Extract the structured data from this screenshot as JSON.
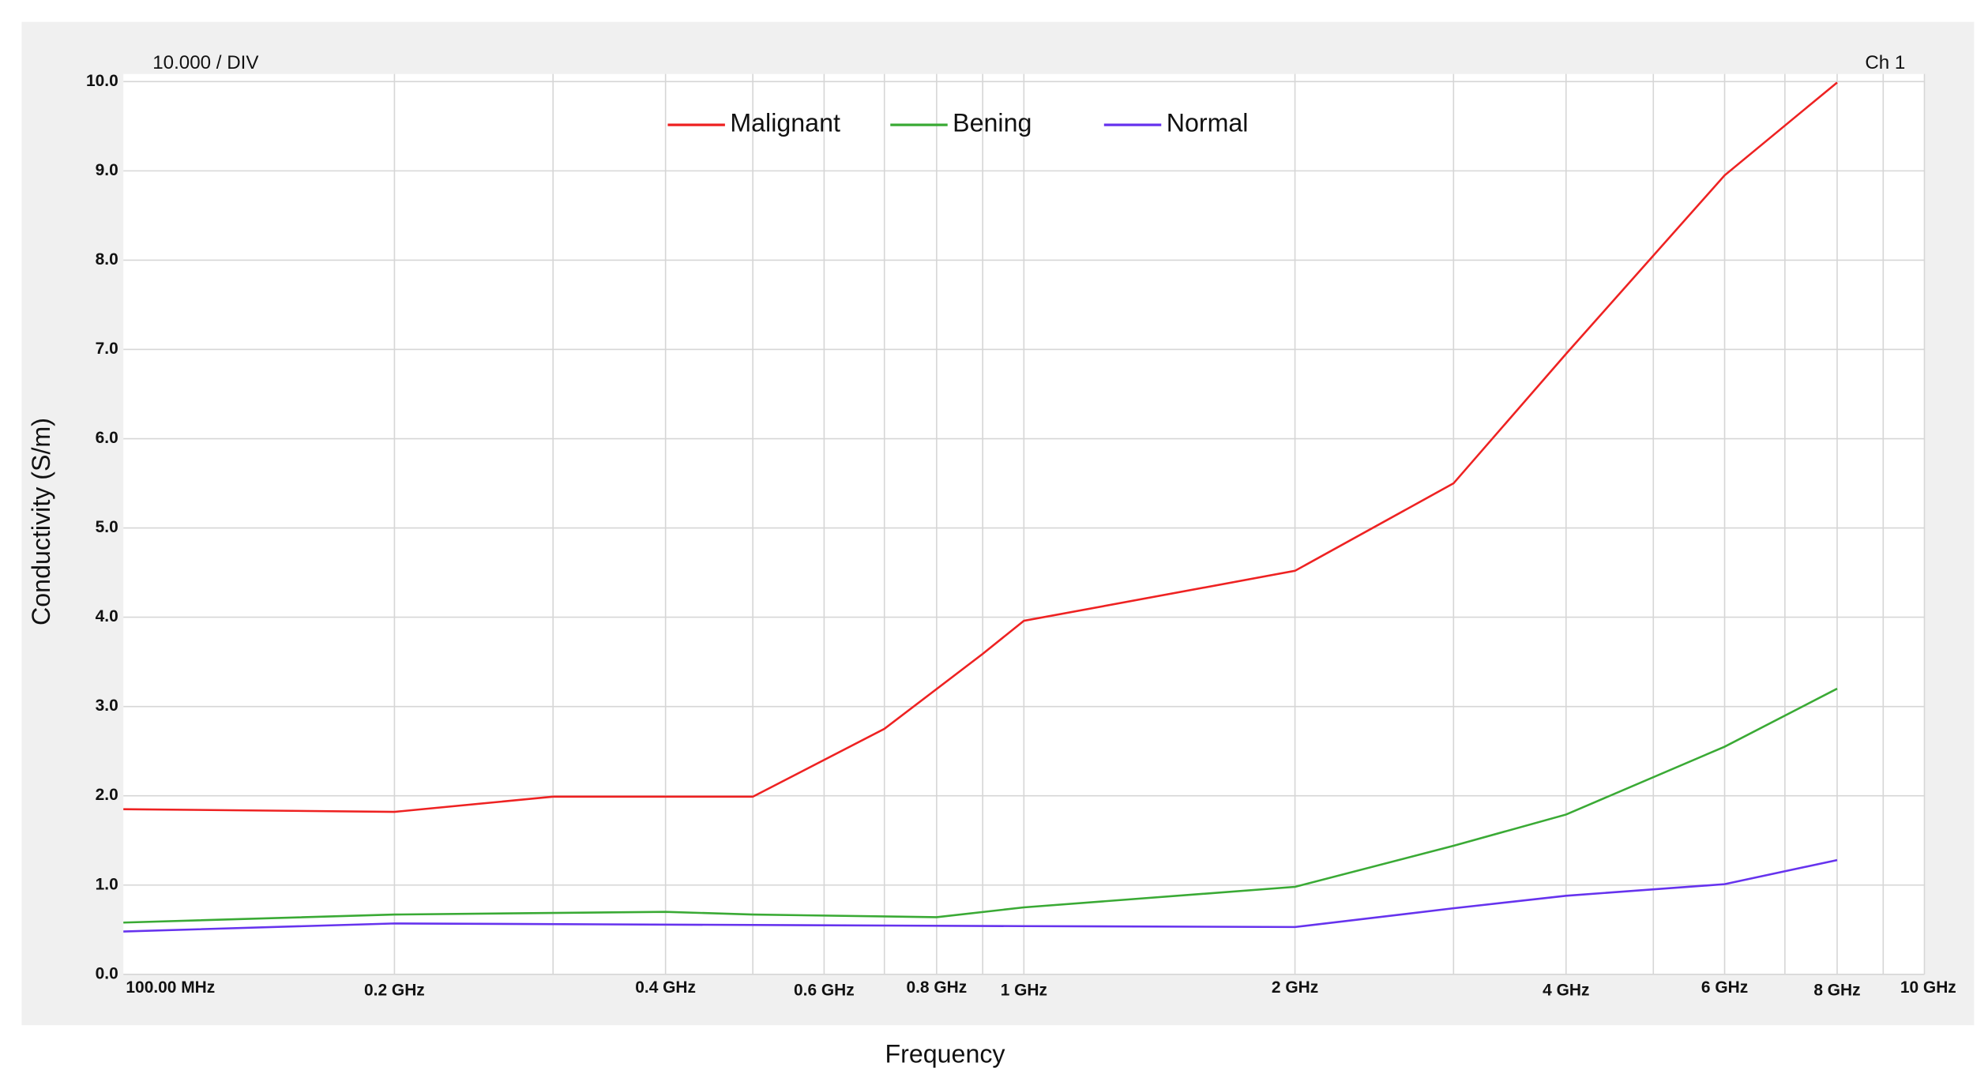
{
  "chart_data": {
    "type": "line",
    "title": "10.000 / DIV",
    "channel_label": "Ch 1",
    "x_label": "Frequency",
    "y_label": "Conductivity  (S/m)",
    "log_x": true,
    "grid": true,
    "legend_position": "top",
    "xlim": [
      0.1,
      10
    ],
    "ylim": [
      0,
      10
    ],
    "xticks": [
      {
        "value": 0.1,
        "label": "100.00 MHz"
      },
      {
        "value": 0.2,
        "label": "0.2 GHz"
      },
      {
        "value": 0.4,
        "label": "0.4 GHz"
      },
      {
        "value": 0.6,
        "label": "0.6 GHz"
      },
      {
        "value": 0.8,
        "label": "0.8 GHz"
      },
      {
        "value": 1,
        "label": "1 GHz"
      },
      {
        "value": 2,
        "label": "2 GHz"
      },
      {
        "value": 4,
        "label": "4 GHz"
      },
      {
        "value": 6,
        "label": "6 GHz"
      },
      {
        "value": 8,
        "label": "8 GHz"
      },
      {
        "value": 10,
        "label": "10 GHz"
      }
    ],
    "x_minor_gridlines": [
      0.3,
      0.5,
      0.7,
      0.9,
      3,
      5,
      7,
      9
    ],
    "yticks": [
      {
        "value": 0,
        "label": "0.0"
      },
      {
        "value": 1,
        "label": "1.0"
      },
      {
        "value": 2,
        "label": "2.0"
      },
      {
        "value": 3,
        "label": "3.0"
      },
      {
        "value": 4,
        "label": "4.0"
      },
      {
        "value": 5,
        "label": "5.0"
      },
      {
        "value": 6,
        "label": "6.0"
      },
      {
        "value": 7,
        "label": "7.0"
      },
      {
        "value": 8,
        "label": "8.0"
      },
      {
        "value": 9,
        "label": "9.0"
      },
      {
        "value": 10,
        "label": "10.0"
      }
    ],
    "series": [
      {
        "name": "Malignant",
        "color": "#ee2222",
        "x": [
          0.1,
          0.2,
          0.3,
          0.5,
          0.7,
          0.9,
          1,
          2,
          3,
          4,
          6,
          8
        ],
        "values": [
          1.85,
          1.82,
          1.99,
          1.99,
          2.75,
          3.59,
          3.96,
          4.52,
          5.5,
          6.95,
          8.95,
          9.99
        ]
      },
      {
        "name": "Bening",
        "color": "#3aaa35",
        "x": [
          0.1,
          0.2,
          0.4,
          0.5,
          0.8,
          1,
          2,
          3,
          4,
          6,
          8
        ],
        "values": [
          0.58,
          0.67,
          0.7,
          0.67,
          0.64,
          0.75,
          0.98,
          1.44,
          1.79,
          2.55,
          3.2
        ]
      },
      {
        "name": "Normal",
        "color": "#6633ee",
        "x": [
          0.1,
          0.2,
          1,
          2,
          3,
          4,
          6,
          8
        ],
        "values": [
          0.48,
          0.57,
          0.54,
          0.53,
          0.74,
          0.88,
          1.01,
          1.28
        ]
      }
    ]
  }
}
